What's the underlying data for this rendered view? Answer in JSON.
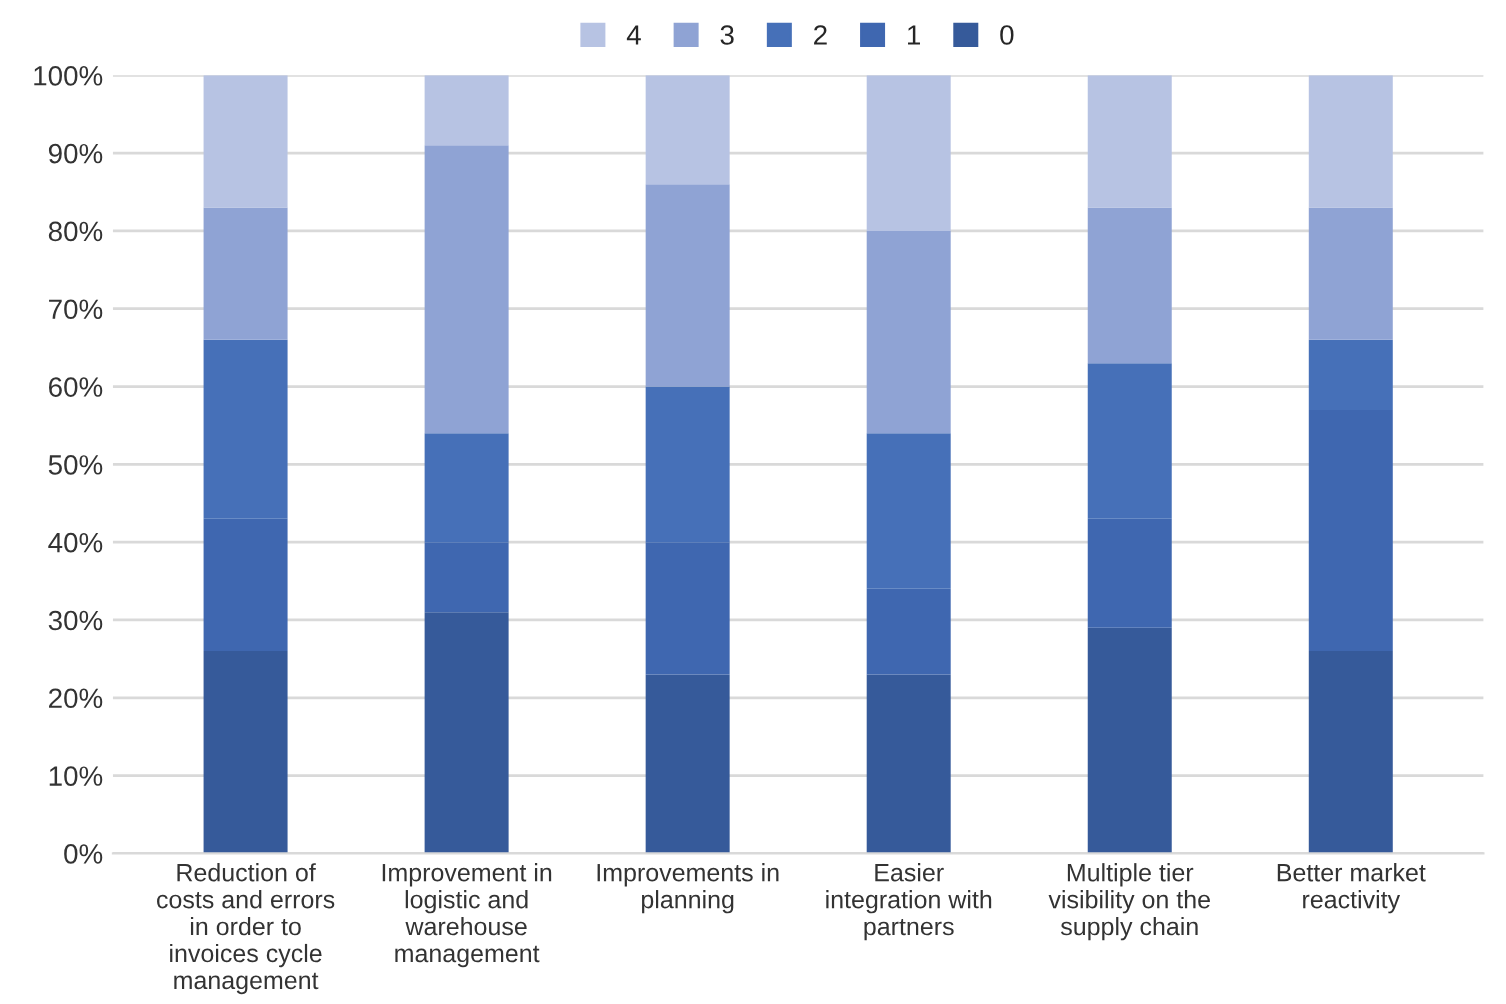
{
  "chart_data": {
    "type": "bar",
    "stacked": true,
    "categories": [
      "Reduction of costs and errors in order to invoices cycle management",
      "Improvement in logistic and warehouse management",
      "Improvements in planning",
      "Easier integration with partners",
      "Multiple tier visibility on the supply chain",
      "Better market reactivity"
    ],
    "series": [
      {
        "name": "0",
        "color": "#365a9a",
        "values": [
          26,
          31,
          23,
          23,
          29,
          26
        ]
      },
      {
        "name": "1",
        "color": "#3f67b0",
        "values": [
          17,
          9,
          17,
          11,
          14,
          31
        ]
      },
      {
        "name": "2",
        "color": "#4670b8",
        "values": [
          23,
          14,
          20,
          20,
          20,
          9
        ]
      },
      {
        "name": "3",
        "color": "#8fa3d4",
        "values": [
          17,
          37,
          26,
          26,
          20,
          17
        ]
      },
      {
        "name": "4",
        "color": "#b7c3e3",
        "values": [
          17,
          9,
          14,
          20,
          17,
          17
        ]
      }
    ],
    "ylim": [
      0,
      100
    ],
    "yticks": [
      {
        "value": 0,
        "label": "0%"
      },
      {
        "value": 10,
        "label": "10%"
      },
      {
        "value": 20,
        "label": "20%"
      },
      {
        "value": 30,
        "label": "30%"
      },
      {
        "value": 40,
        "label": "40%"
      },
      {
        "value": 50,
        "label": "50%"
      },
      {
        "value": 60,
        "label": "60%"
      },
      {
        "value": 70,
        "label": "70%"
      },
      {
        "value": 80,
        "label": "80%"
      },
      {
        "value": 90,
        "label": "90%"
      },
      {
        "value": 100,
        "label": "100%"
      }
    ],
    "grid": "y",
    "legend": "top"
  }
}
